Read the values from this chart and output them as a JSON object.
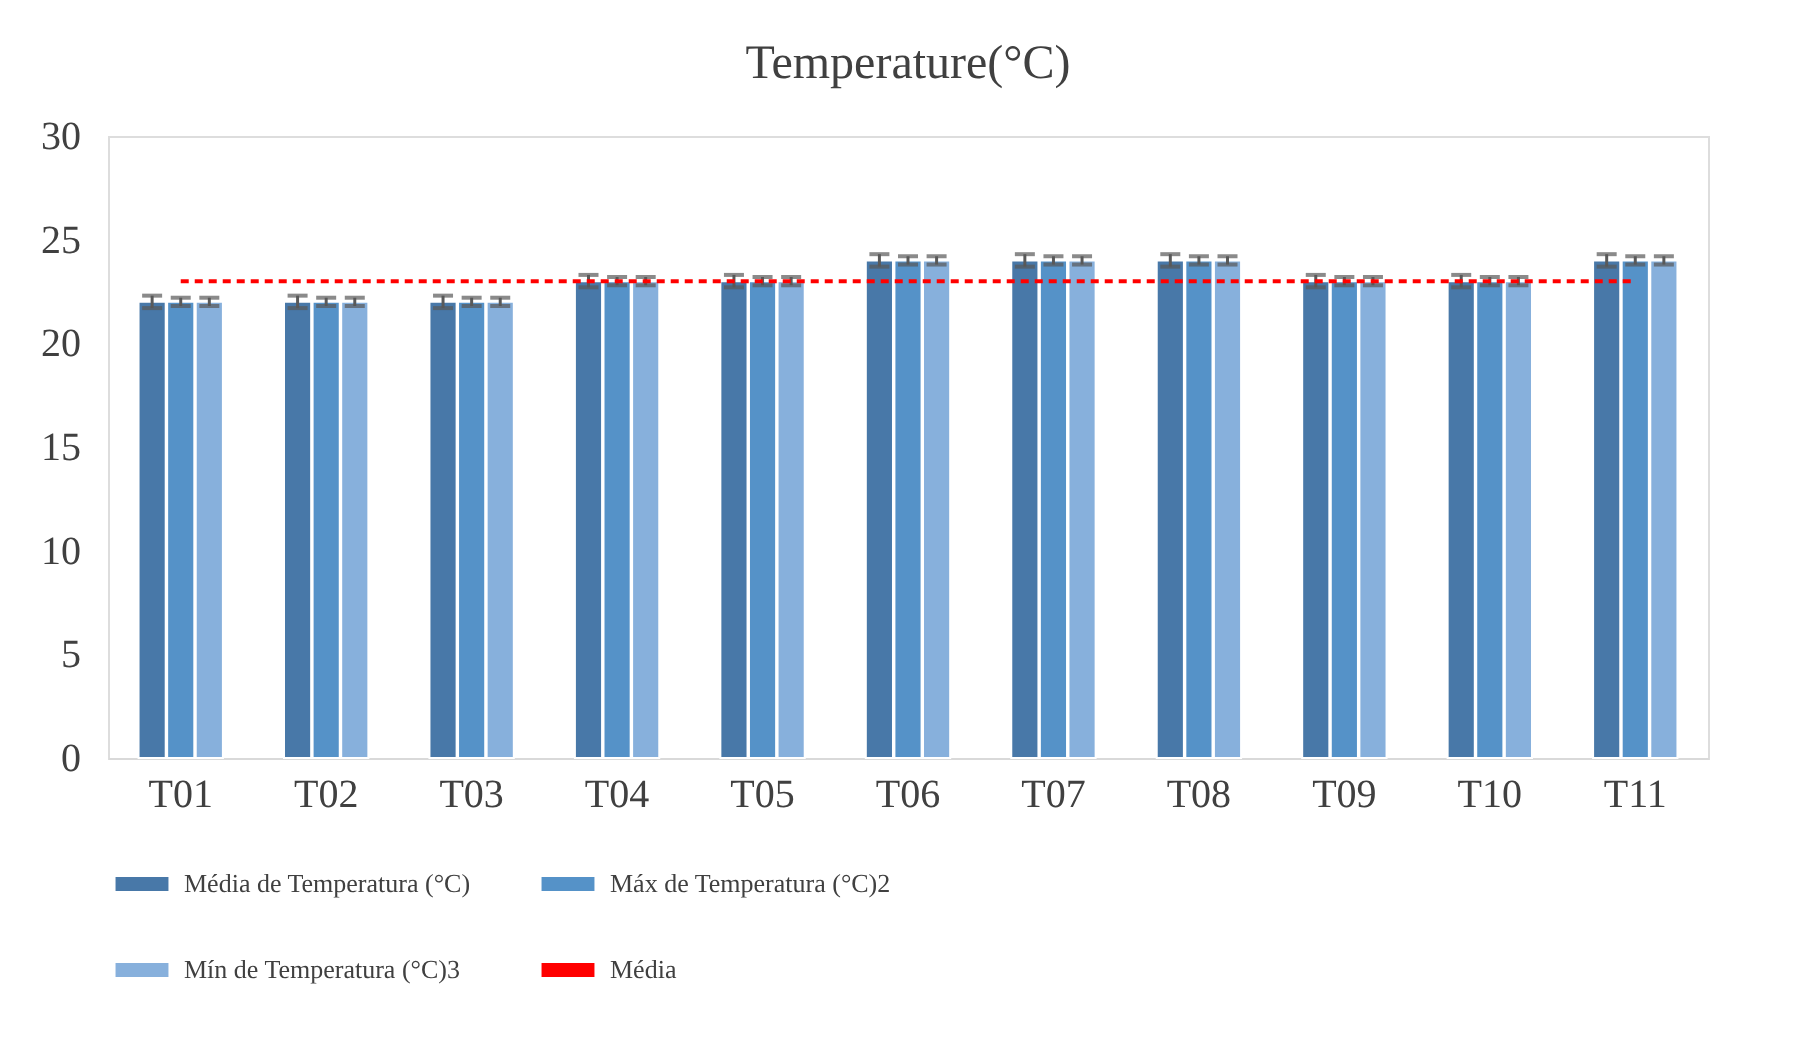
{
  "chart_data": {
    "type": "bar",
    "title": "Temperature(°C)",
    "categories": [
      "T01",
      "T02",
      "T03",
      "T04",
      "T05",
      "T06",
      "T07",
      "T08",
      "T09",
      "T10",
      "T11"
    ],
    "series": [
      {
        "name": "Média de Temperatura (°C)",
        "color": "#4878a8",
        "values": [
          22,
          22,
          22,
          23,
          23,
          24,
          24,
          24,
          23,
          23,
          24
        ],
        "errors": [
          0.3,
          0.3,
          0.3,
          0.3,
          0.3,
          0.3,
          0.3,
          0.3,
          0.3,
          0.3,
          0.3
        ]
      },
      {
        "name": "Máx de Temperatura (°C)2",
        "color": "#5592c8",
        "values": [
          22,
          22,
          22,
          23,
          23,
          24,
          24,
          24,
          23,
          23,
          24
        ],
        "errors": [
          0.2,
          0.2,
          0.2,
          0.2,
          0.2,
          0.2,
          0.2,
          0.2,
          0.2,
          0.2,
          0.2
        ]
      },
      {
        "name": "Mín de Temperatura (°C)3",
        "color": "#87b0dc",
        "values": [
          22,
          22,
          22,
          23,
          23,
          24,
          24,
          24,
          23,
          23,
          24
        ],
        "errors": [
          0.2,
          0.2,
          0.2,
          0.2,
          0.2,
          0.2,
          0.2,
          0.2,
          0.2,
          0.2,
          0.2
        ]
      },
      {
        "name": "Média",
        "type": "line",
        "color": "#ff0000",
        "line_style": "dashed",
        "values": [
          23,
          23,
          23,
          23,
          23,
          23,
          23,
          23,
          23,
          23,
          23
        ]
      }
    ],
    "ylim": [
      0,
      30
    ],
    "yticks": [
      0,
      5,
      10,
      15,
      20,
      25,
      30
    ],
    "grid": false,
    "legend": "bottom"
  }
}
